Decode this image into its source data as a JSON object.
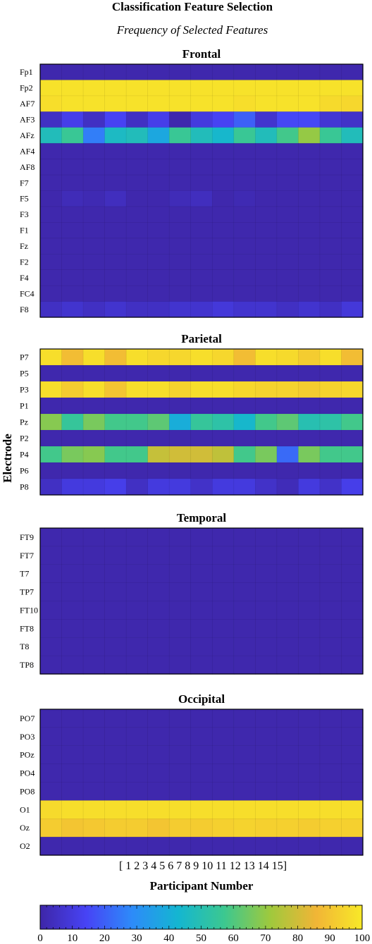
{
  "title": "Classification Feature Selection",
  "subtitle": "Frequency of Selected Features",
  "ylabel": "Electrode",
  "xlabel": "Participant Number",
  "participant_label": "[ 1 2 3 4 5 6 7 8 9 10 11 12 13 14 15]",
  "colormap": [
    "#3e26a8",
    "#4743f5",
    "#2d8bf9",
    "#14b6d1",
    "#3cc890",
    "#9fc93d",
    "#f1b536",
    "#f8e928"
  ],
  "chart_data": {
    "type": "heatmap",
    "color_range": [
      0,
      100
    ],
    "colorbar_ticks": [
      "0",
      "10",
      "20",
      "30",
      "40",
      "50",
      "60",
      "70",
      "80",
      "90",
      "100"
    ],
    "participants": [
      1,
      2,
      3,
      4,
      5,
      6,
      7,
      8,
      9,
      10,
      11,
      12,
      13,
      14,
      15
    ],
    "panels": [
      {
        "title": "Frontal",
        "rows": [
          "Fp1",
          "Fp2",
          "AF7",
          "AF3",
          "AFz",
          "AF4",
          "AF8",
          "F7",
          "F5",
          "F3",
          "F1",
          "Fz",
          "F2",
          "F4",
          "FC4",
          "F8"
        ],
        "values": [
          [
            1,
            1,
            1,
            1,
            1,
            1,
            1,
            1,
            1,
            1,
            1,
            1,
            1,
            1,
            1
          ],
          [
            98,
            98,
            98,
            98,
            98,
            98,
            98,
            98,
            98,
            98,
            98,
            98,
            98,
            98,
            98
          ],
          [
            97,
            98,
            98,
            98,
            98,
            98,
            98,
            98,
            98,
            97,
            98,
            98,
            98,
            96,
            95
          ],
          [
            5,
            12,
            5,
            14,
            5,
            12,
            1,
            10,
            14,
            20,
            7,
            15,
            15,
            8,
            6
          ],
          [
            48,
            56,
            26,
            46,
            48,
            38,
            56,
            48,
            44,
            56,
            48,
            58,
            70,
            56,
            48
          ],
          [
            1,
            1,
            1,
            1,
            1,
            1,
            1,
            1,
            1,
            1,
            1,
            1,
            1,
            1,
            1
          ],
          [
            1,
            1,
            1,
            1,
            1,
            1,
            1,
            1,
            1,
            1,
            1,
            1,
            1,
            1,
            1
          ],
          [
            1,
            1,
            1,
            1,
            1,
            1,
            1,
            1,
            1,
            1,
            1,
            1,
            1,
            1,
            1
          ],
          [
            1,
            3,
            2,
            4,
            1,
            1,
            3,
            4,
            1,
            2,
            1,
            1,
            1,
            1,
            1
          ],
          [
            1,
            1,
            1,
            1,
            1,
            1,
            1,
            1,
            1,
            1,
            1,
            1,
            1,
            1,
            1
          ],
          [
            1,
            1,
            1,
            1,
            1,
            1,
            1,
            1,
            1,
            1,
            1,
            1,
            1,
            1,
            1
          ],
          [
            1,
            1,
            1,
            1,
            1,
            1,
            1,
            1,
            1,
            1,
            1,
            1,
            1,
            1,
            1
          ],
          [
            1,
            1,
            1,
            1,
            1,
            1,
            1,
            1,
            1,
            1,
            1,
            1,
            1,
            1,
            1
          ],
          [
            1,
            1,
            1,
            1,
            1,
            1,
            1,
            1,
            1,
            1,
            1,
            1,
            1,
            1,
            1
          ],
          [
            1,
            1,
            1,
            1,
            1,
            1,
            1,
            1,
            1,
            1,
            1,
            1,
            1,
            1,
            1
          ],
          [
            5,
            7,
            5,
            7,
            5,
            5,
            7,
            7,
            9,
            7,
            7,
            5,
            7,
            5,
            9
          ]
        ]
      },
      {
        "title": "Parietal",
        "rows": [
          "P7",
          "P5",
          "P3",
          "P1",
          "Pz",
          "P2",
          "P4",
          "P6",
          "P8"
        ],
        "values": [
          [
            97,
            88,
            97,
            88,
            97,
            95,
            95,
            97,
            95,
            88,
            97,
            96,
            92,
            97,
            88
          ],
          [
            1,
            1,
            1,
            1,
            1,
            1,
            1,
            1,
            1,
            1,
            1,
            1,
            1,
            1,
            1
          ],
          [
            97,
            92,
            97,
            90,
            97,
            97,
            94,
            97,
            97,
            95,
            94,
            94,
            92,
            94,
            95
          ],
          [
            1,
            1,
            1,
            1,
            1,
            1,
            1,
            1,
            1,
            1,
            1,
            1,
            1,
            1,
            1
          ],
          [
            68,
            55,
            66,
            58,
            58,
            62,
            40,
            55,
            52,
            44,
            58,
            62,
            50,
            52,
            58
          ],
          [
            1,
            1,
            1,
            1,
            1,
            1,
            1,
            1,
            1,
            1,
            1,
            1,
            1,
            1,
            1
          ],
          [
            58,
            66,
            68,
            58,
            58,
            78,
            80,
            80,
            77,
            58,
            66,
            22,
            66,
            58,
            58
          ],
          [
            1,
            1,
            1,
            1,
            1,
            1,
            1,
            1,
            1,
            1,
            1,
            1,
            1,
            1,
            1
          ],
          [
            5,
            10,
            10,
            12,
            5,
            10,
            10,
            6,
            10,
            10,
            6,
            3,
            10,
            6,
            12
          ]
        ]
      },
      {
        "title": "Temporal",
        "rows": [
          "FT9",
          "FT7",
          "T7",
          "TP7",
          "FT10",
          "FT8",
          "T8",
          "TP8"
        ],
        "values": [
          [
            1,
            1,
            1,
            1,
            1,
            1,
            1,
            1,
            1,
            1,
            1,
            1,
            1,
            1,
            1
          ],
          [
            1,
            1,
            1,
            1,
            1,
            1,
            1,
            1,
            1,
            1,
            1,
            1,
            1,
            1,
            1
          ],
          [
            1,
            1,
            1,
            1,
            1,
            1,
            1,
            1,
            1,
            1,
            1,
            1,
            1,
            1,
            1
          ],
          [
            1,
            1,
            1,
            1,
            1,
            1,
            1,
            1,
            1,
            1,
            1,
            1,
            1,
            1,
            1
          ],
          [
            1,
            1,
            1,
            1,
            1,
            1,
            1,
            1,
            1,
            1,
            1,
            1,
            1,
            1,
            1
          ],
          [
            1,
            1,
            1,
            1,
            1,
            1,
            1,
            1,
            1,
            1,
            1,
            1,
            1,
            1,
            1
          ],
          [
            1,
            1,
            1,
            1,
            1,
            1,
            1,
            1,
            1,
            1,
            1,
            1,
            1,
            1,
            1
          ],
          [
            1,
            1,
            1,
            1,
            1,
            1,
            1,
            1,
            1,
            1,
            1,
            1,
            1,
            1,
            1
          ]
        ]
      },
      {
        "title": "Occipital",
        "rows": [
          "PO7",
          "PO3",
          "POz",
          "PO4",
          "PO8",
          "O1",
          "Oz",
          "O2"
        ],
        "values": [
          [
            1,
            1,
            1,
            1,
            1,
            1,
            1,
            1,
            1,
            1,
            1,
            1,
            1,
            1,
            1
          ],
          [
            1,
            1,
            1,
            1,
            1,
            1,
            1,
            1,
            1,
            1,
            1,
            1,
            1,
            1,
            1
          ],
          [
            1,
            1,
            1,
            1,
            1,
            1,
            1,
            1,
            1,
            1,
            1,
            1,
            1,
            1,
            1
          ],
          [
            1,
            1,
            1,
            1,
            1,
            1,
            1,
            1,
            1,
            1,
            1,
            1,
            1,
            1,
            1
          ],
          [
            1,
            1,
            1,
            1,
            1,
            1,
            1,
            1,
            1,
            1,
            1,
            1,
            1,
            1,
            1
          ],
          [
            96,
            97,
            97,
            97,
            97,
            97,
            97,
            97,
            97,
            97,
            97,
            97,
            97,
            97,
            97
          ],
          [
            92,
            90,
            91,
            92,
            92,
            90,
            92,
            92,
            93,
            94,
            93,
            93,
            92,
            93,
            93
          ],
          [
            1,
            1,
            1,
            1,
            1,
            1,
            1,
            1,
            1,
            1,
            1,
            1,
            1,
            1,
            1
          ]
        ]
      }
    ]
  }
}
